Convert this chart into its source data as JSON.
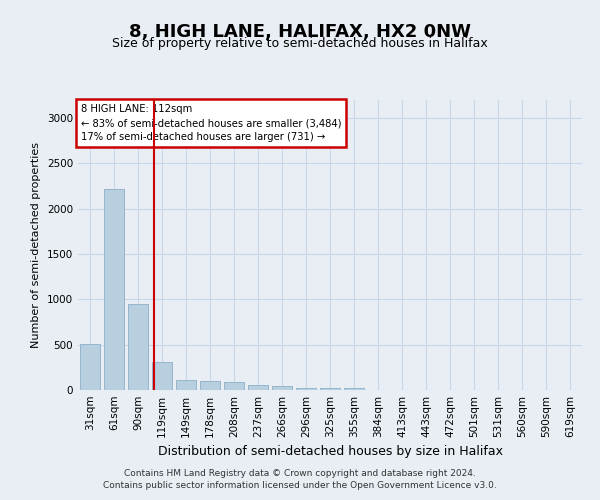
{
  "title": "8, HIGH LANE, HALIFAX, HX2 0NW",
  "subtitle": "Size of property relative to semi-detached houses in Halifax",
  "xlabel": "Distribution of semi-detached houses by size in Halifax",
  "ylabel": "Number of semi-detached properties",
  "bar_labels": [
    "31sqm",
    "61sqm",
    "90sqm",
    "119sqm",
    "149sqm",
    "178sqm",
    "208sqm",
    "237sqm",
    "266sqm",
    "296sqm",
    "325sqm",
    "355sqm",
    "384sqm",
    "413sqm",
    "443sqm",
    "472sqm",
    "501sqm",
    "531sqm",
    "560sqm",
    "590sqm",
    "619sqm"
  ],
  "bar_values": [
    510,
    2220,
    950,
    310,
    105,
    95,
    85,
    50,
    40,
    25,
    20,
    20,
    0,
    0,
    0,
    0,
    0,
    0,
    0,
    0,
    0
  ],
  "bar_color": "#b8cfe0",
  "bar_edge_color": "#8aafc8",
  "grid_color": "#c8d8e8",
  "annotation_text": "8 HIGH LANE: 112sqm\n← 83% of semi-detached houses are smaller (3,484)\n17% of semi-detached houses are larger (731) →",
  "annotation_box_color": "#ffffff",
  "annotation_box_edge": "#cc0000",
  "vline_color": "#cc0000",
  "vline_x_index": 2.65,
  "ylim": [
    0,
    3200
  ],
  "yticks": [
    0,
    500,
    1000,
    1500,
    2000,
    2500,
    3000
  ],
  "footer": "Contains HM Land Registry data © Crown copyright and database right 2024.\nContains public sector information licensed under the Open Government Licence v3.0.",
  "background_color": "#e8eef4",
  "plot_bg_color": "#e8eef4",
  "title_fontsize": 13,
  "subtitle_fontsize": 9,
  "xlabel_fontsize": 9,
  "ylabel_fontsize": 8,
  "tick_fontsize": 7.5,
  "footer_fontsize": 6.5
}
